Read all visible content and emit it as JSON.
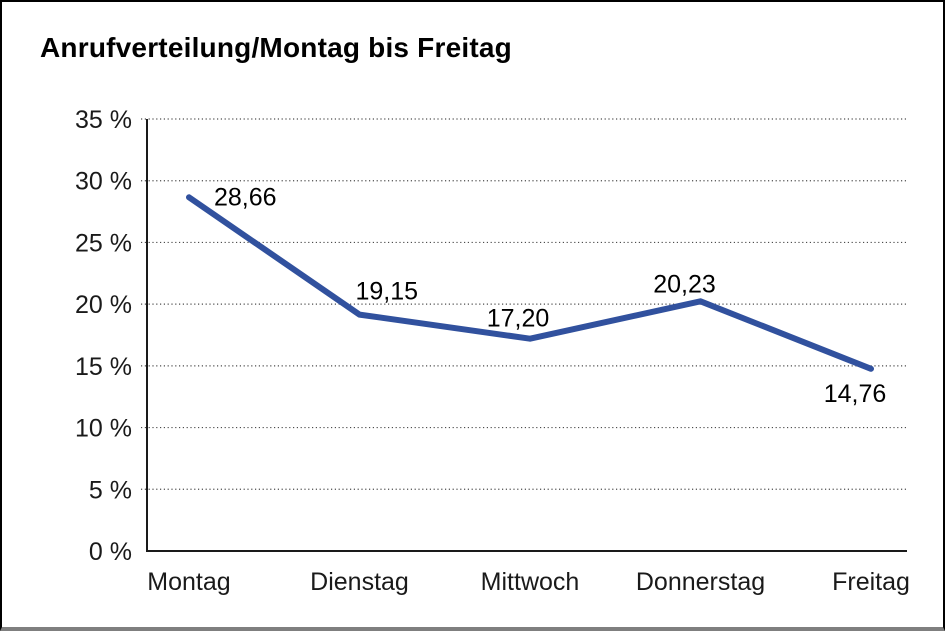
{
  "chart_data": {
    "type": "line",
    "title": "Anrufverteilung/Montag bis Freitag",
    "categories": [
      "Montag",
      "Dienstag",
      "Mittwoch",
      "Donnerstag",
      "Freitag"
    ],
    "series": [
      {
        "name": "Anrufverteilung",
        "values": [
          28.66,
          19.15,
          17.2,
          20.23,
          14.76
        ],
        "point_labels": [
          "28,66",
          "19,15",
          "17,20",
          "20,23",
          "14,76"
        ]
      }
    ],
    "xlabel": "",
    "ylabel": "",
    "ylim": [
      0,
      35
    ],
    "yticks": [
      0,
      5,
      10,
      15,
      20,
      25,
      30,
      35
    ],
    "ytick_labels": [
      "0 %",
      "5 %",
      "10 %",
      "15 %",
      "20 %",
      "25 %",
      "30 %",
      "35 %"
    ],
    "grid": "horizontal-dotted",
    "legend": "none",
    "colors": {
      "line": "#31519E",
      "axis": "#1a1a1a",
      "gridline": "#4d4d4d",
      "text": "#1a1a1a",
      "frame_border": "#000000",
      "frame_bottom_shadow": "#7f7f7f"
    }
  }
}
